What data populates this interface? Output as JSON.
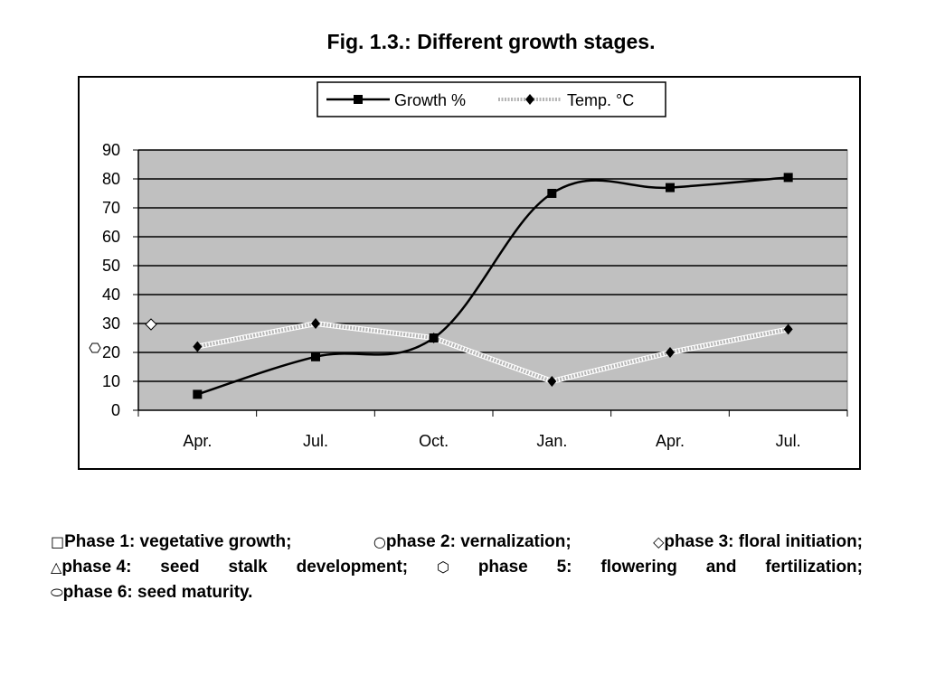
{
  "title": "Fig. 1.3.: Different growth stages.",
  "chart_data": {
    "type": "line",
    "categories": [
      "Apr.",
      "Jul.",
      "Oct.",
      "Jan.",
      "Apr.",
      "Jul."
    ],
    "ylim": [
      0,
      90
    ],
    "yticks": [
      0,
      10,
      20,
      30,
      40,
      50,
      60,
      70,
      80,
      90
    ],
    "grid": true,
    "legend_position": "top",
    "plot_background": "#c0c0c0",
    "series": [
      {
        "name": "Growth %",
        "marker": "square",
        "color": "#000000",
        "values": [
          5.5,
          18.5,
          25,
          75,
          77,
          80.5
        ]
      },
      {
        "name": "Temp. °C",
        "marker": "diamond",
        "color": "#b4b4b4",
        "values": [
          22,
          30,
          25,
          10,
          20,
          28
        ]
      }
    ]
  },
  "caption": {
    "line1": [
      {
        "sym": "□",
        "text": "Phase 1: vegetative growth;"
      },
      {
        "sym": "○",
        "text": "phase 2: vernalization;"
      },
      {
        "sym": "◇",
        "text": "phase 3: floral initiation;"
      }
    ],
    "line2": [
      {
        "sym": "△",
        "text": "phase 4:"
      },
      {
        "sym": "",
        "text": "seed"
      },
      {
        "sym": "",
        "text": "stalk"
      },
      {
        "sym": "",
        "text": "development;"
      },
      {
        "sym": "⬡",
        "text": ""
      },
      {
        "sym": "",
        "text": "phase"
      },
      {
        "sym": "",
        "text": "5:"
      },
      {
        "sym": "",
        "text": "flowering"
      },
      {
        "sym": "",
        "text": "and"
      },
      {
        "sym": "",
        "text": "fertilization;"
      }
    ],
    "line3": [
      {
        "sym": "⬭",
        "text": "phase 6: seed maturity."
      }
    ]
  }
}
